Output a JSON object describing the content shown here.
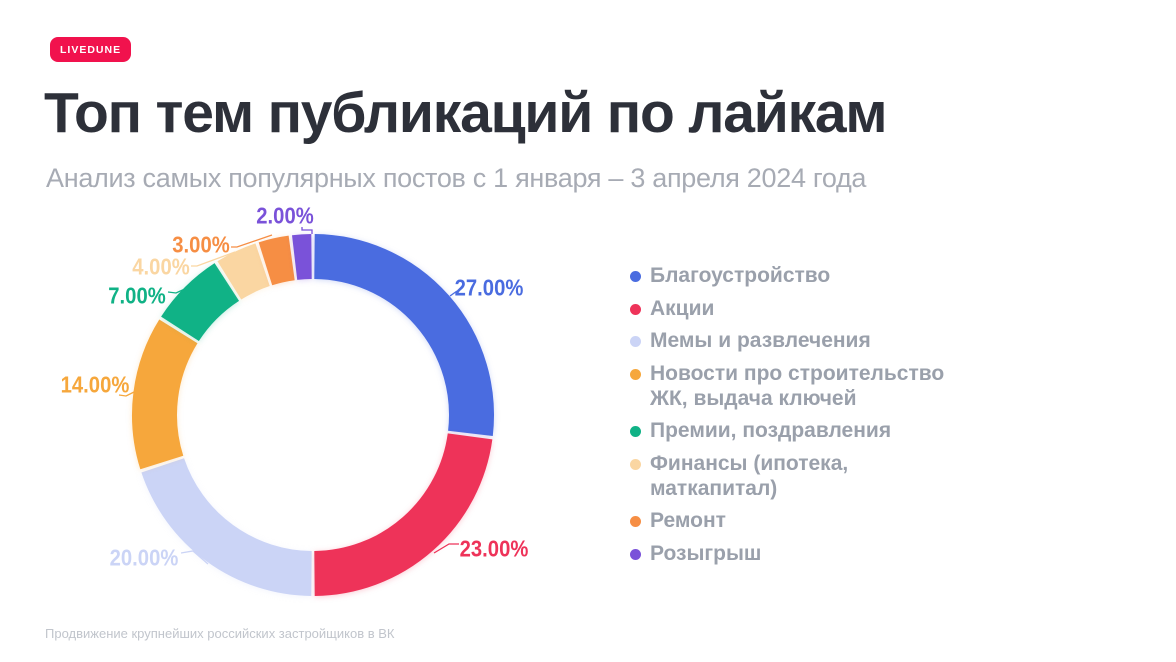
{
  "badge": "LIVEDUNE",
  "title": "Топ тем публикаций по лайкам",
  "subtitle": "Анализ самых популярных постов с 1 января – 3 апреля 2024 года",
  "footer": "Продвижение крупнейших российских застройщиков в ВК",
  "chart_data": {
    "type": "pie",
    "subtype": "donut",
    "title": "Топ тем публикаций по лайкам",
    "legend_position": "right",
    "start_angle_deg": 0,
    "direction": "clockwise",
    "slices": [
      {
        "label": "Благоустройство",
        "value": 27,
        "display": "27.00%",
        "color": "#4a6ce0"
      },
      {
        "label": "Акции",
        "value": 23,
        "display": "23.00%",
        "color": "#ee3359"
      },
      {
        "label": "Мемы и развлечения",
        "value": 20,
        "display": "20.00%",
        "color": "#cbd4f6"
      },
      {
        "label": "Новости про строительство ЖК, выдача ключей",
        "value": 14,
        "display": "14.00%",
        "color": "#f6a73c"
      },
      {
        "label": "Премии, поздравления",
        "value": 7,
        "display": "7.00%",
        "color": "#10b286"
      },
      {
        "label": "Финансы (ипотека, маткапитал)",
        "value": 4,
        "display": "4.00%",
        "color": "#fad6a2"
      },
      {
        "label": "Ремонт",
        "value": 3,
        "display": "3.00%",
        "color": "#f68e44"
      },
      {
        "label": "Розыгрыш",
        "value": 2,
        "display": "2.00%",
        "color": "#7a52d9"
      }
    ]
  }
}
